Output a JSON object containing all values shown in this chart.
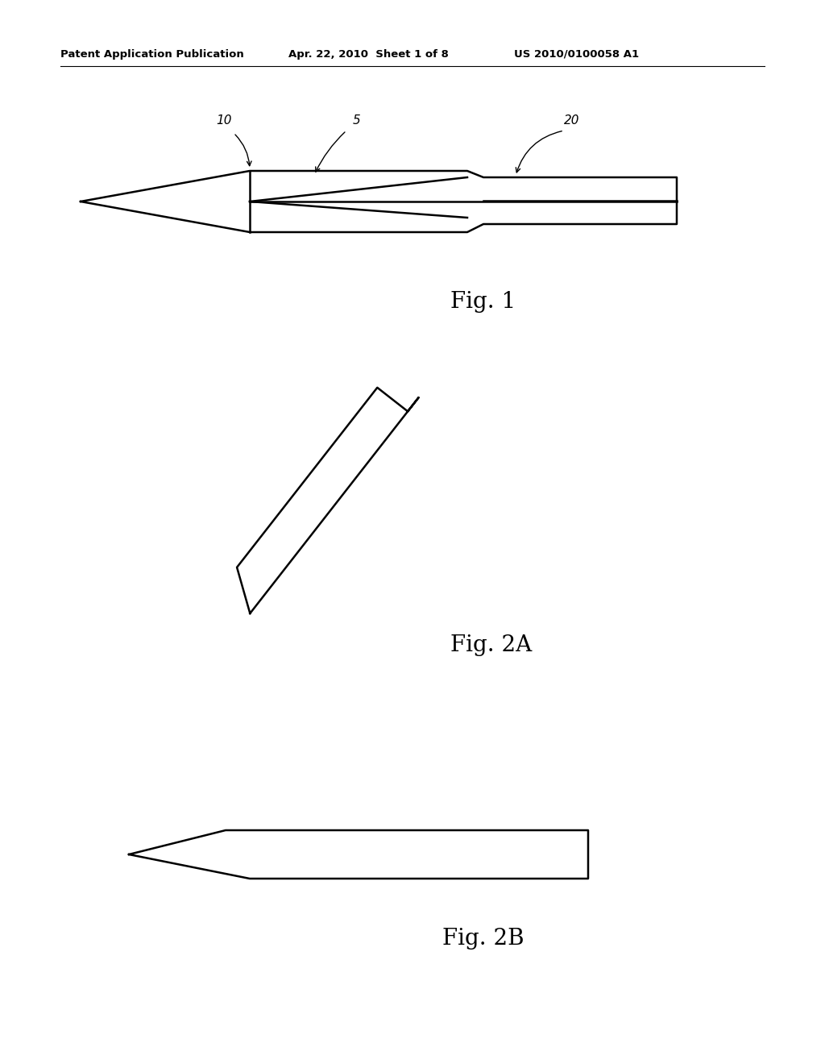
{
  "bg_color": "#ffffff",
  "header_left": "Patent Application Publication",
  "header_mid": "Apr. 22, 2010  Sheet 1 of 8",
  "header_right": "US 2010/0100058 A1",
  "header_fontsize": 9.5,
  "fig1_label": "Fig. 1",
  "fig2a_label": "Fig. 2A",
  "fig2b_label": "Fig. 2B",
  "label_10": "10",
  "label_5": "5",
  "label_20": "20",
  "line_color": "#000000",
  "line_width": 1.8,
  "fig_label_fontsize": 20
}
